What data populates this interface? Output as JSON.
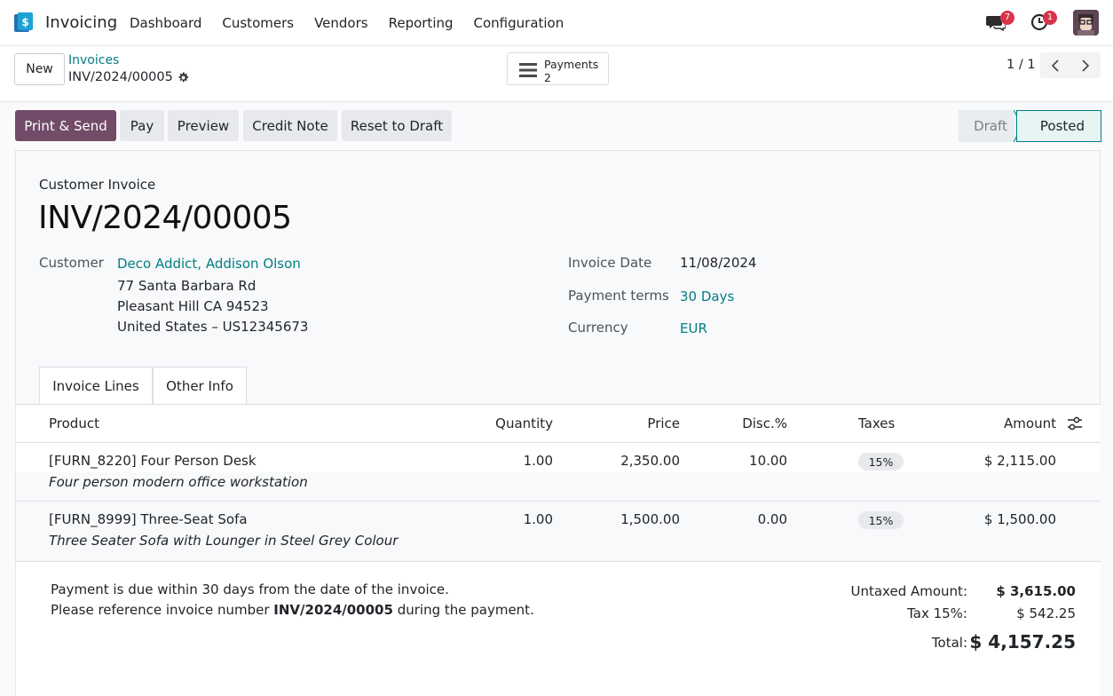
{
  "navbar": {
    "app_name": "Invoicing",
    "menu": [
      "Dashboard",
      "Customers",
      "Vendors",
      "Reporting",
      "Configuration"
    ],
    "messages_count": "7",
    "activities_count": "1"
  },
  "control": {
    "new_label": "New",
    "breadcrumb_parent": "Invoices",
    "breadcrumb_current": "INV/2024/00005",
    "payments_label": "Payments",
    "payments_count": "2",
    "pager": "1 / 1"
  },
  "actions": {
    "print_send": "Print & Send",
    "pay": "Pay",
    "preview": "Preview",
    "credit_note": "Credit Note",
    "reset_draft": "Reset to Draft"
  },
  "status": {
    "draft": "Draft",
    "posted": "Posted",
    "current": "Posted"
  },
  "invoice": {
    "move_type": "Customer Invoice",
    "name": "INV/2024/00005",
    "customer_label": "Customer",
    "customer_name": "Deco Addict, Addison Olson",
    "address_line1": "77 Santa Barbara Rd",
    "address_line2": "Pleasant Hill CA 94523",
    "address_line3": "United States – US12345673",
    "date_label": "Invoice Date",
    "date": "11/08/2024",
    "terms_label": "Payment terms",
    "terms": "30 Days",
    "currency_label": "Currency",
    "currency": "EUR"
  },
  "tabs": [
    "Invoice Lines",
    "Other Info"
  ],
  "table": {
    "headers": [
      "Product",
      "Quantity",
      "Price",
      "Disc.%",
      "Taxes",
      "Amount"
    ],
    "rows": [
      {
        "product": "[FURN_8220] Four Person Desk",
        "description": "Four person modern office workstation",
        "quantity": "1.00",
        "price": "2,350.00",
        "discount": "10.00",
        "tax": "15%",
        "amount": "$ 2,115.00"
      },
      {
        "product": "[FURN_8999] Three-Seat Sofa",
        "description": "Three Seater Sofa with Lounger in Steel Grey Colour",
        "quantity": "1.00",
        "price": "1,500.00",
        "discount": "0.00",
        "tax": "15%",
        "amount": "$ 1,500.00"
      }
    ]
  },
  "footer": {
    "note_line1": "Payment is due within 30 days from the date of the invoice.",
    "note_line2_pre": "Please reference invoice number ",
    "note_line2_ref": "INV/2024/00005",
    "note_line2_post": " during the payment.",
    "untaxed_label": "Untaxed Amount:",
    "untaxed_value": "$ 3,615.00",
    "tax_label": "Tax 15%:",
    "tax_value": "$ 542.25",
    "total_label": "Total:",
    "total_value": "$ 4,157.25"
  },
  "colors": {
    "brand": "#714b67",
    "link": "#017e84",
    "badge": "#d9334a"
  }
}
